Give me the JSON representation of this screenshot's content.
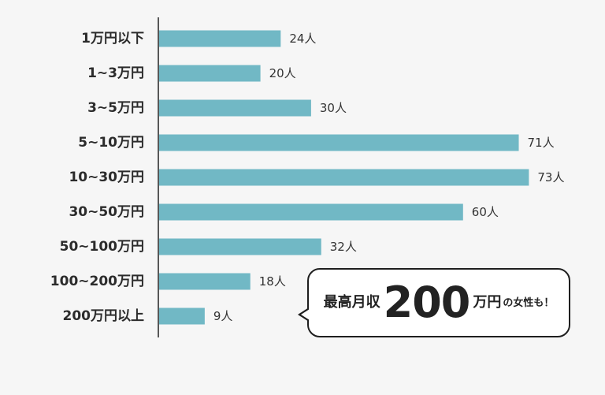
{
  "chart_data": {
    "type": "bar",
    "orientation": "horizontal",
    "categories": [
      "1万円以下",
      "1~3万円",
      "3~5万円",
      "5~10万円",
      "10~30万円",
      "30~50万円",
      "50~100万円",
      "100~200万円",
      "200万円以上"
    ],
    "values": [
      24,
      20,
      30,
      71,
      73,
      60,
      32,
      18,
      9
    ],
    "value_labels": [
      "24人",
      "20人",
      "30人",
      "71人",
      "73人",
      "60人",
      "32人",
      "18人",
      "9人"
    ],
    "title": "",
    "xlabel": "",
    "ylabel": "",
    "xlim": [
      0,
      80
    ],
    "grid": false,
    "bar_color": "#71b8c5"
  },
  "callout": {
    "prefix": "最高月収",
    "number": "200",
    "unit": "万円",
    "suffix": "の女性も！"
  },
  "colors": {
    "background": "#f6f6f6",
    "axis": "#222222",
    "bar": "#71b8c5"
  }
}
